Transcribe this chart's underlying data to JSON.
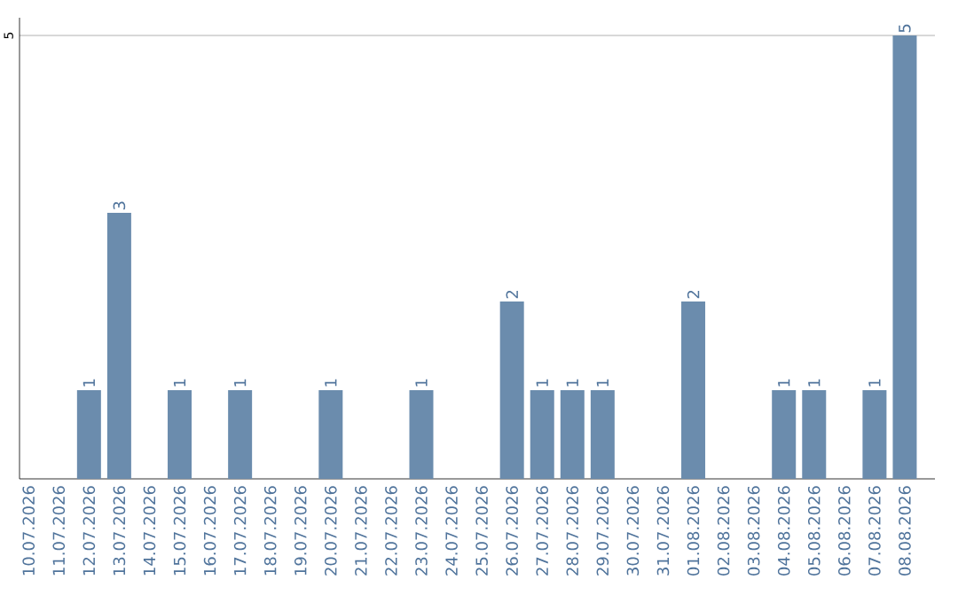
{
  "chart_data": {
    "type": "bar",
    "categories": [
      "10.07.2026",
      "11.07.2026",
      "12.07.2026",
      "13.07.2026",
      "14.07.2026",
      "15.07.2026",
      "16.07.2026",
      "17.07.2026",
      "18.07.2026",
      "19.07.2026",
      "20.07.2026",
      "21.07.2026",
      "22.07.2026",
      "23.07.2026",
      "24.07.2026",
      "25.07.2026",
      "26.07.2026",
      "27.07.2026",
      "28.07.2026",
      "29.07.2026",
      "30.07.2026",
      "31.07.2026",
      "01.08.2026",
      "02.08.2026",
      "03.08.2026",
      "04.08.2026",
      "05.08.2026",
      "06.08.2026",
      "07.08.2026",
      "08.08.2026"
    ],
    "values": [
      0,
      0,
      1,
      3,
      0,
      1,
      0,
      1,
      0,
      0,
      1,
      0,
      0,
      1,
      0,
      0,
      2,
      1,
      1,
      1,
      0,
      0,
      2,
      0,
      0,
      1,
      1,
      0,
      1,
      5
    ],
    "value_labels": [
      null,
      null,
      "1",
      "3",
      null,
      "1",
      null,
      "1",
      null,
      null,
      "1",
      null,
      null,
      "1",
      null,
      null,
      "2",
      "1",
      "1",
      "1",
      null,
      null,
      "2",
      null,
      null,
      "1",
      "1",
      null,
      "1",
      "5"
    ],
    "color": "#6b8cad",
    "ylim": [
      0,
      5.2
    ],
    "yticks": [
      5
    ],
    "grid": "y"
  }
}
